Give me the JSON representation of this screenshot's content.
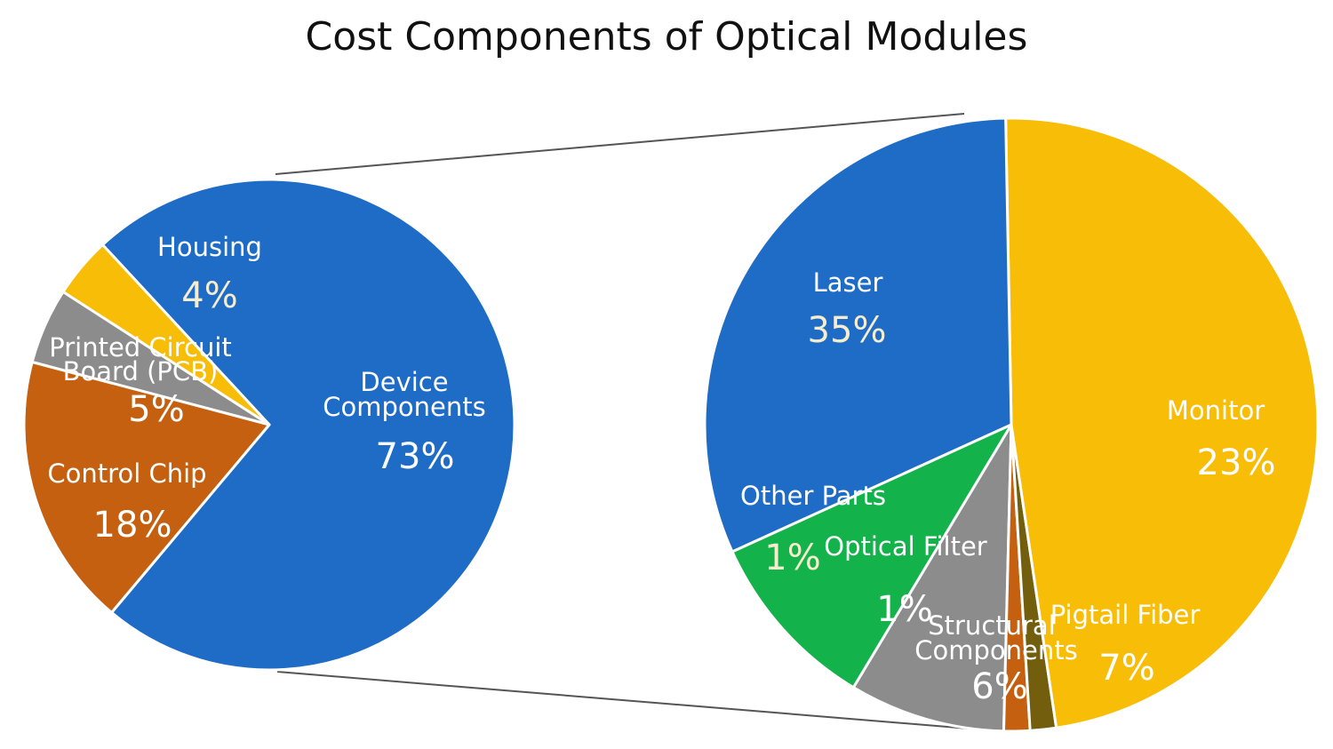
{
  "title": "Cost Components of Optical Modules",
  "chart_data": [
    {
      "type": "pie",
      "name": "",
      "slices": [
        {
          "label": "Device Components",
          "value": 73,
          "value_label": "73%",
          "color": "#1f6cc6"
        },
        {
          "label": "Control Chip",
          "value": 18,
          "value_label": "18%",
          "color": "#c4600f"
        },
        {
          "label": "Printed Circuit Board (PCB)",
          "value": 5,
          "value_label": "5%",
          "color": "#8c8c8c"
        },
        {
          "label": "Housing",
          "value": 4,
          "value_label": "4%",
          "color": "#f8bd06"
        }
      ]
    },
    {
      "type": "pie",
      "name": "",
      "breakdown_of": "Device Components",
      "slices": [
        {
          "label": "Laser",
          "value": 35,
          "value_label": "35%",
          "color": "#f8bd06"
        },
        {
          "label": "Monitor",
          "value": 23,
          "value_label": "23%",
          "color": "#1f6cc6"
        },
        {
          "label": "Pigtail Fiber",
          "value": 7,
          "value_label": "7%",
          "color": "#13b24b"
        },
        {
          "label": "Structural Components",
          "value": 6,
          "value_label": "6%",
          "color": "#8c8c8c"
        },
        {
          "label": "Optical Filter",
          "value": 1,
          "value_label": "1%",
          "color": "#c4600f"
        },
        {
          "label": "Other Parts",
          "value": 1,
          "value_label": "1%",
          "color": "#725e0c"
        }
      ]
    }
  ]
}
